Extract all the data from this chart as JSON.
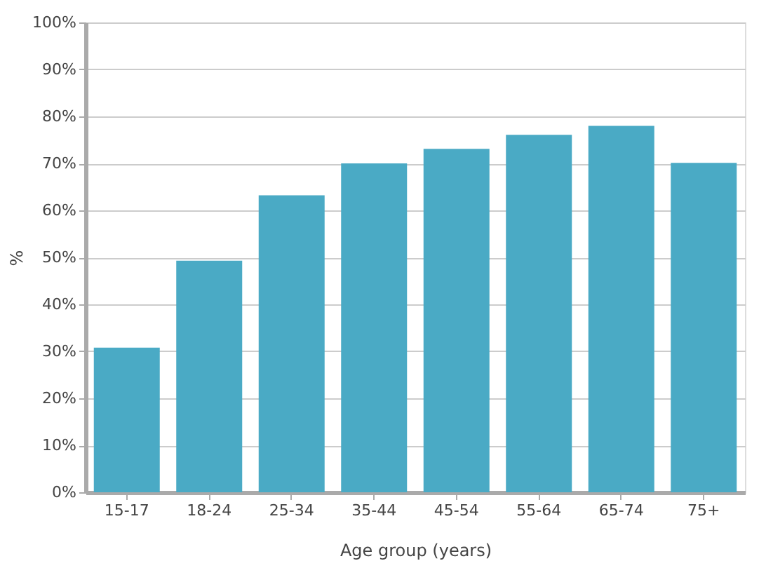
{
  "chart_data": {
    "type": "bar",
    "xlabel": "Age group (years)",
    "ylabel": "%",
    "categories": [
      "15-17",
      "18-24",
      "25-34",
      "35-44",
      "45-54",
      "55-64",
      "65-74",
      "75+"
    ],
    "values": [
      30.8,
      49.3,
      63.2,
      70.0,
      73.1,
      76.1,
      78.0,
      70.1
    ],
    "color": "#4aaac5",
    "ylim": [
      0,
      100
    ],
    "yticks": [
      {
        "value": 0,
        "label": "0%"
      },
      {
        "value": 10,
        "label": "10%"
      },
      {
        "value": 20,
        "label": "20%"
      },
      {
        "value": 30,
        "label": "30%"
      },
      {
        "value": 40,
        "label": "40%"
      },
      {
        "value": 50,
        "label": "50%"
      },
      {
        "value": 60,
        "label": "60%"
      },
      {
        "value": 70,
        "label": "70%"
      },
      {
        "value": 80,
        "label": "80%"
      },
      {
        "value": 90,
        "label": "90%"
      },
      {
        "value": 100,
        "label": "100%"
      }
    ],
    "grid": "y"
  }
}
